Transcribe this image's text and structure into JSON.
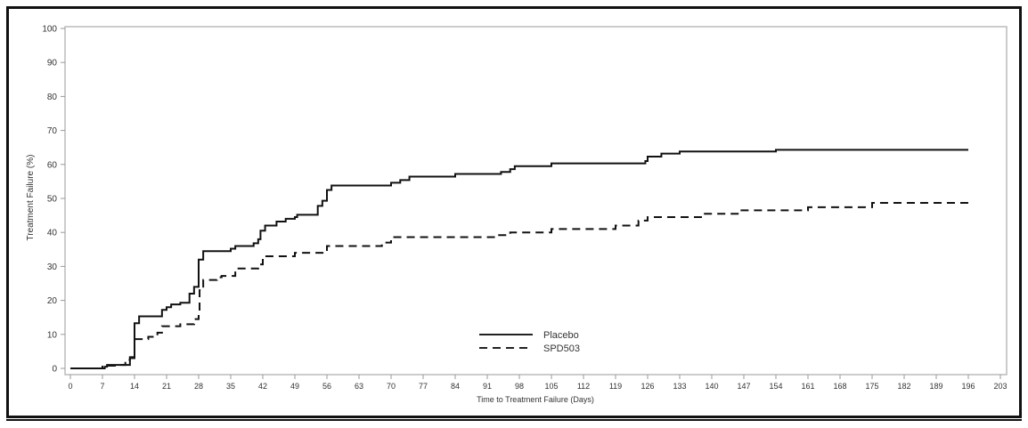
{
  "chart_data": {
    "type": "line",
    "title": "",
    "xlabel": "Time to Treatment Failure (Days)",
    "ylabel": "Treatment Failure (%)",
    "xlim": [
      0,
      203
    ],
    "ylim": [
      0,
      100
    ],
    "xticks": [
      0,
      7,
      14,
      21,
      28,
      35,
      42,
      49,
      56,
      63,
      70,
      77,
      84,
      91,
      98,
      105,
      112,
      119,
      126,
      133,
      140,
      147,
      154,
      161,
      168,
      175,
      182,
      189,
      196,
      203
    ],
    "yticks": [
      0,
      10,
      20,
      30,
      40,
      50,
      60,
      70,
      80,
      90,
      100
    ],
    "step": true,
    "grid": false,
    "legend_position": "bottom-center",
    "series": [
      {
        "name": "Placebo",
        "style": "solid",
        "color": "#111111",
        "x": [
          0,
          7.5,
          8,
          13,
          14,
          15,
          20,
          21,
          22,
          24,
          26,
          27,
          28,
          29,
          35,
          36,
          40,
          41,
          41.5,
          42.5,
          45,
          47,
          49,
          49.5,
          54,
          55,
          56,
          57,
          70,
          72,
          74,
          84,
          94,
          96,
          97,
          105,
          125.5,
          126,
          129,
          133,
          154,
          196
        ],
        "y": [
          0,
          0.5,
          1,
          3.3,
          13.3,
          15.3,
          17.2,
          18,
          18.8,
          19.3,
          22,
          24,
          32,
          34.5,
          35.2,
          36,
          36.8,
          38,
          40.5,
          42,
          43.2,
          44,
          44.5,
          45.2,
          47.8,
          49.3,
          52.5,
          53.8,
          54.6,
          55.4,
          56.4,
          57.2,
          57.8,
          58.6,
          59.5,
          60.3,
          61,
          62.3,
          63.2,
          63.8,
          64.3,
          64.3
        ]
      },
      {
        "name": "SPD503",
        "style": "dashed",
        "color": "#111111",
        "x": [
          0,
          7,
          10,
          12,
          13,
          14,
          17,
          19,
          20,
          24,
          27,
          28,
          28.2,
          29,
          32,
          33,
          36,
          41,
          42,
          49,
          56,
          68,
          70,
          93,
          96,
          105,
          119,
          124,
          126,
          138,
          146,
          161,
          175,
          196
        ],
        "y": [
          0,
          0.8,
          1,
          2.5,
          3,
          8.6,
          9.3,
          10.5,
          12.4,
          13,
          14.5,
          16.8,
          23,
          26,
          26.8,
          27.2,
          29.4,
          30.6,
          33,
          34,
          36,
          37,
          38.6,
          39.2,
          40,
          41,
          42,
          43.5,
          44.5,
          45.5,
          46.5,
          47.4,
          48.7,
          48.7
        ]
      }
    ]
  }
}
